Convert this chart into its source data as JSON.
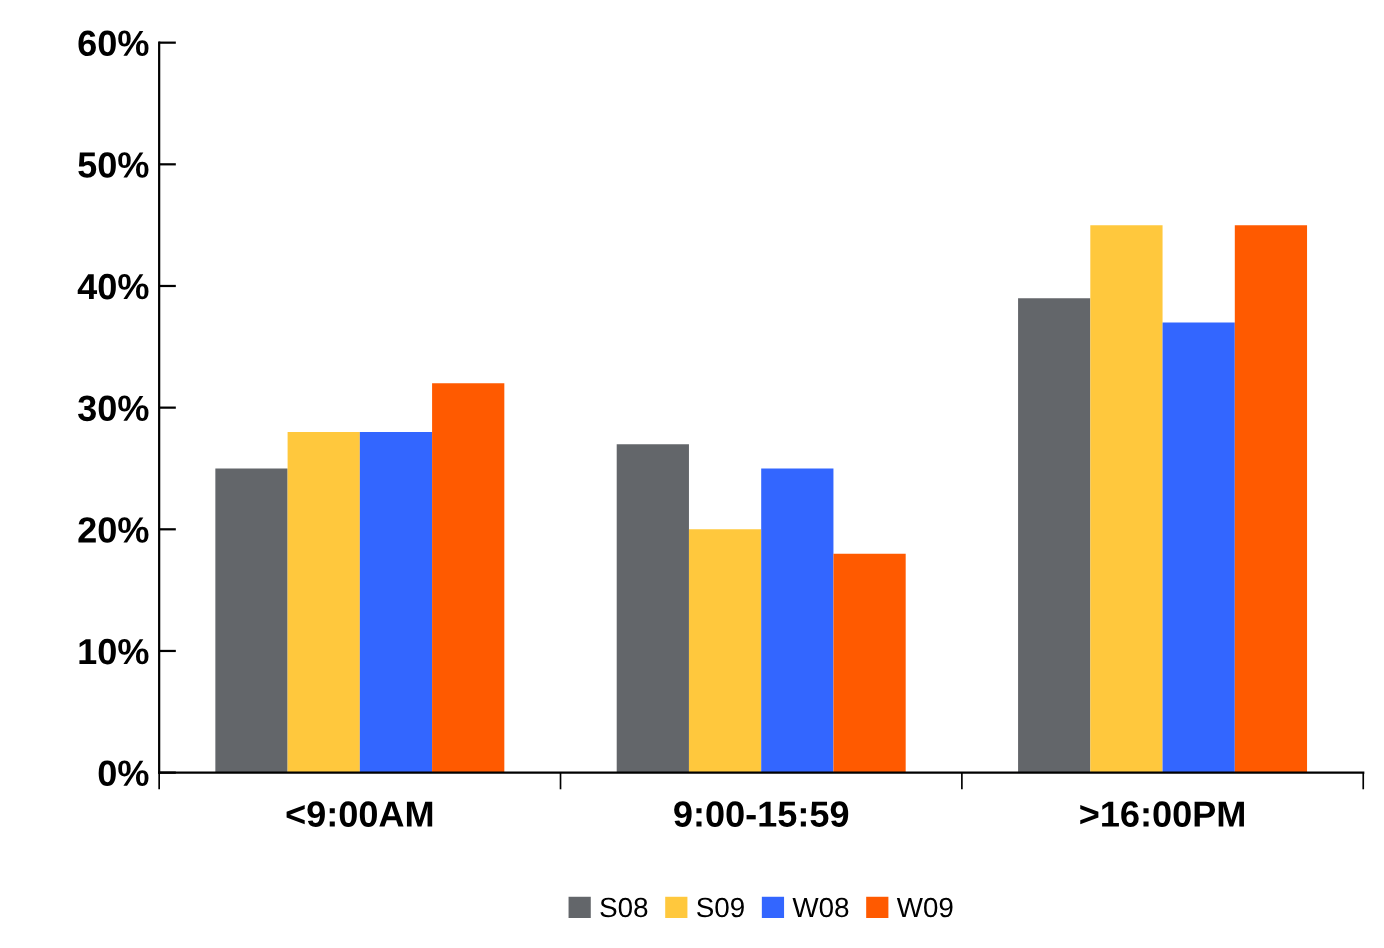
{
  "chart_data": {
    "type": "bar",
    "categories": [
      "<9:00AM",
      "9:00-15:59",
      ">16:00PM"
    ],
    "series": [
      {
        "name": "S08",
        "color": "#63666a",
        "values": [
          25,
          27,
          39
        ]
      },
      {
        "name": "S09",
        "color": "#ffc83d",
        "values": [
          28,
          20,
          45
        ]
      },
      {
        "name": "W08",
        "color": "#3366ff",
        "values": [
          28,
          25,
          37
        ]
      },
      {
        "name": "W09",
        "color": "#ff5a00",
        "values": [
          32,
          18,
          45
        ]
      }
    ],
    "ylim": [
      0,
      60
    ],
    "yticks": [
      {
        "value": 0,
        "label": "0%"
      },
      {
        "value": 10,
        "label": "10%"
      },
      {
        "value": 20,
        "label": "20%"
      },
      {
        "value": 30,
        "label": "30%"
      },
      {
        "value": 40,
        "label": "40%"
      },
      {
        "value": 50,
        "label": "50%"
      },
      {
        "value": 60,
        "label": "60%"
      }
    ],
    "grid": false,
    "legend": "bottom"
  }
}
